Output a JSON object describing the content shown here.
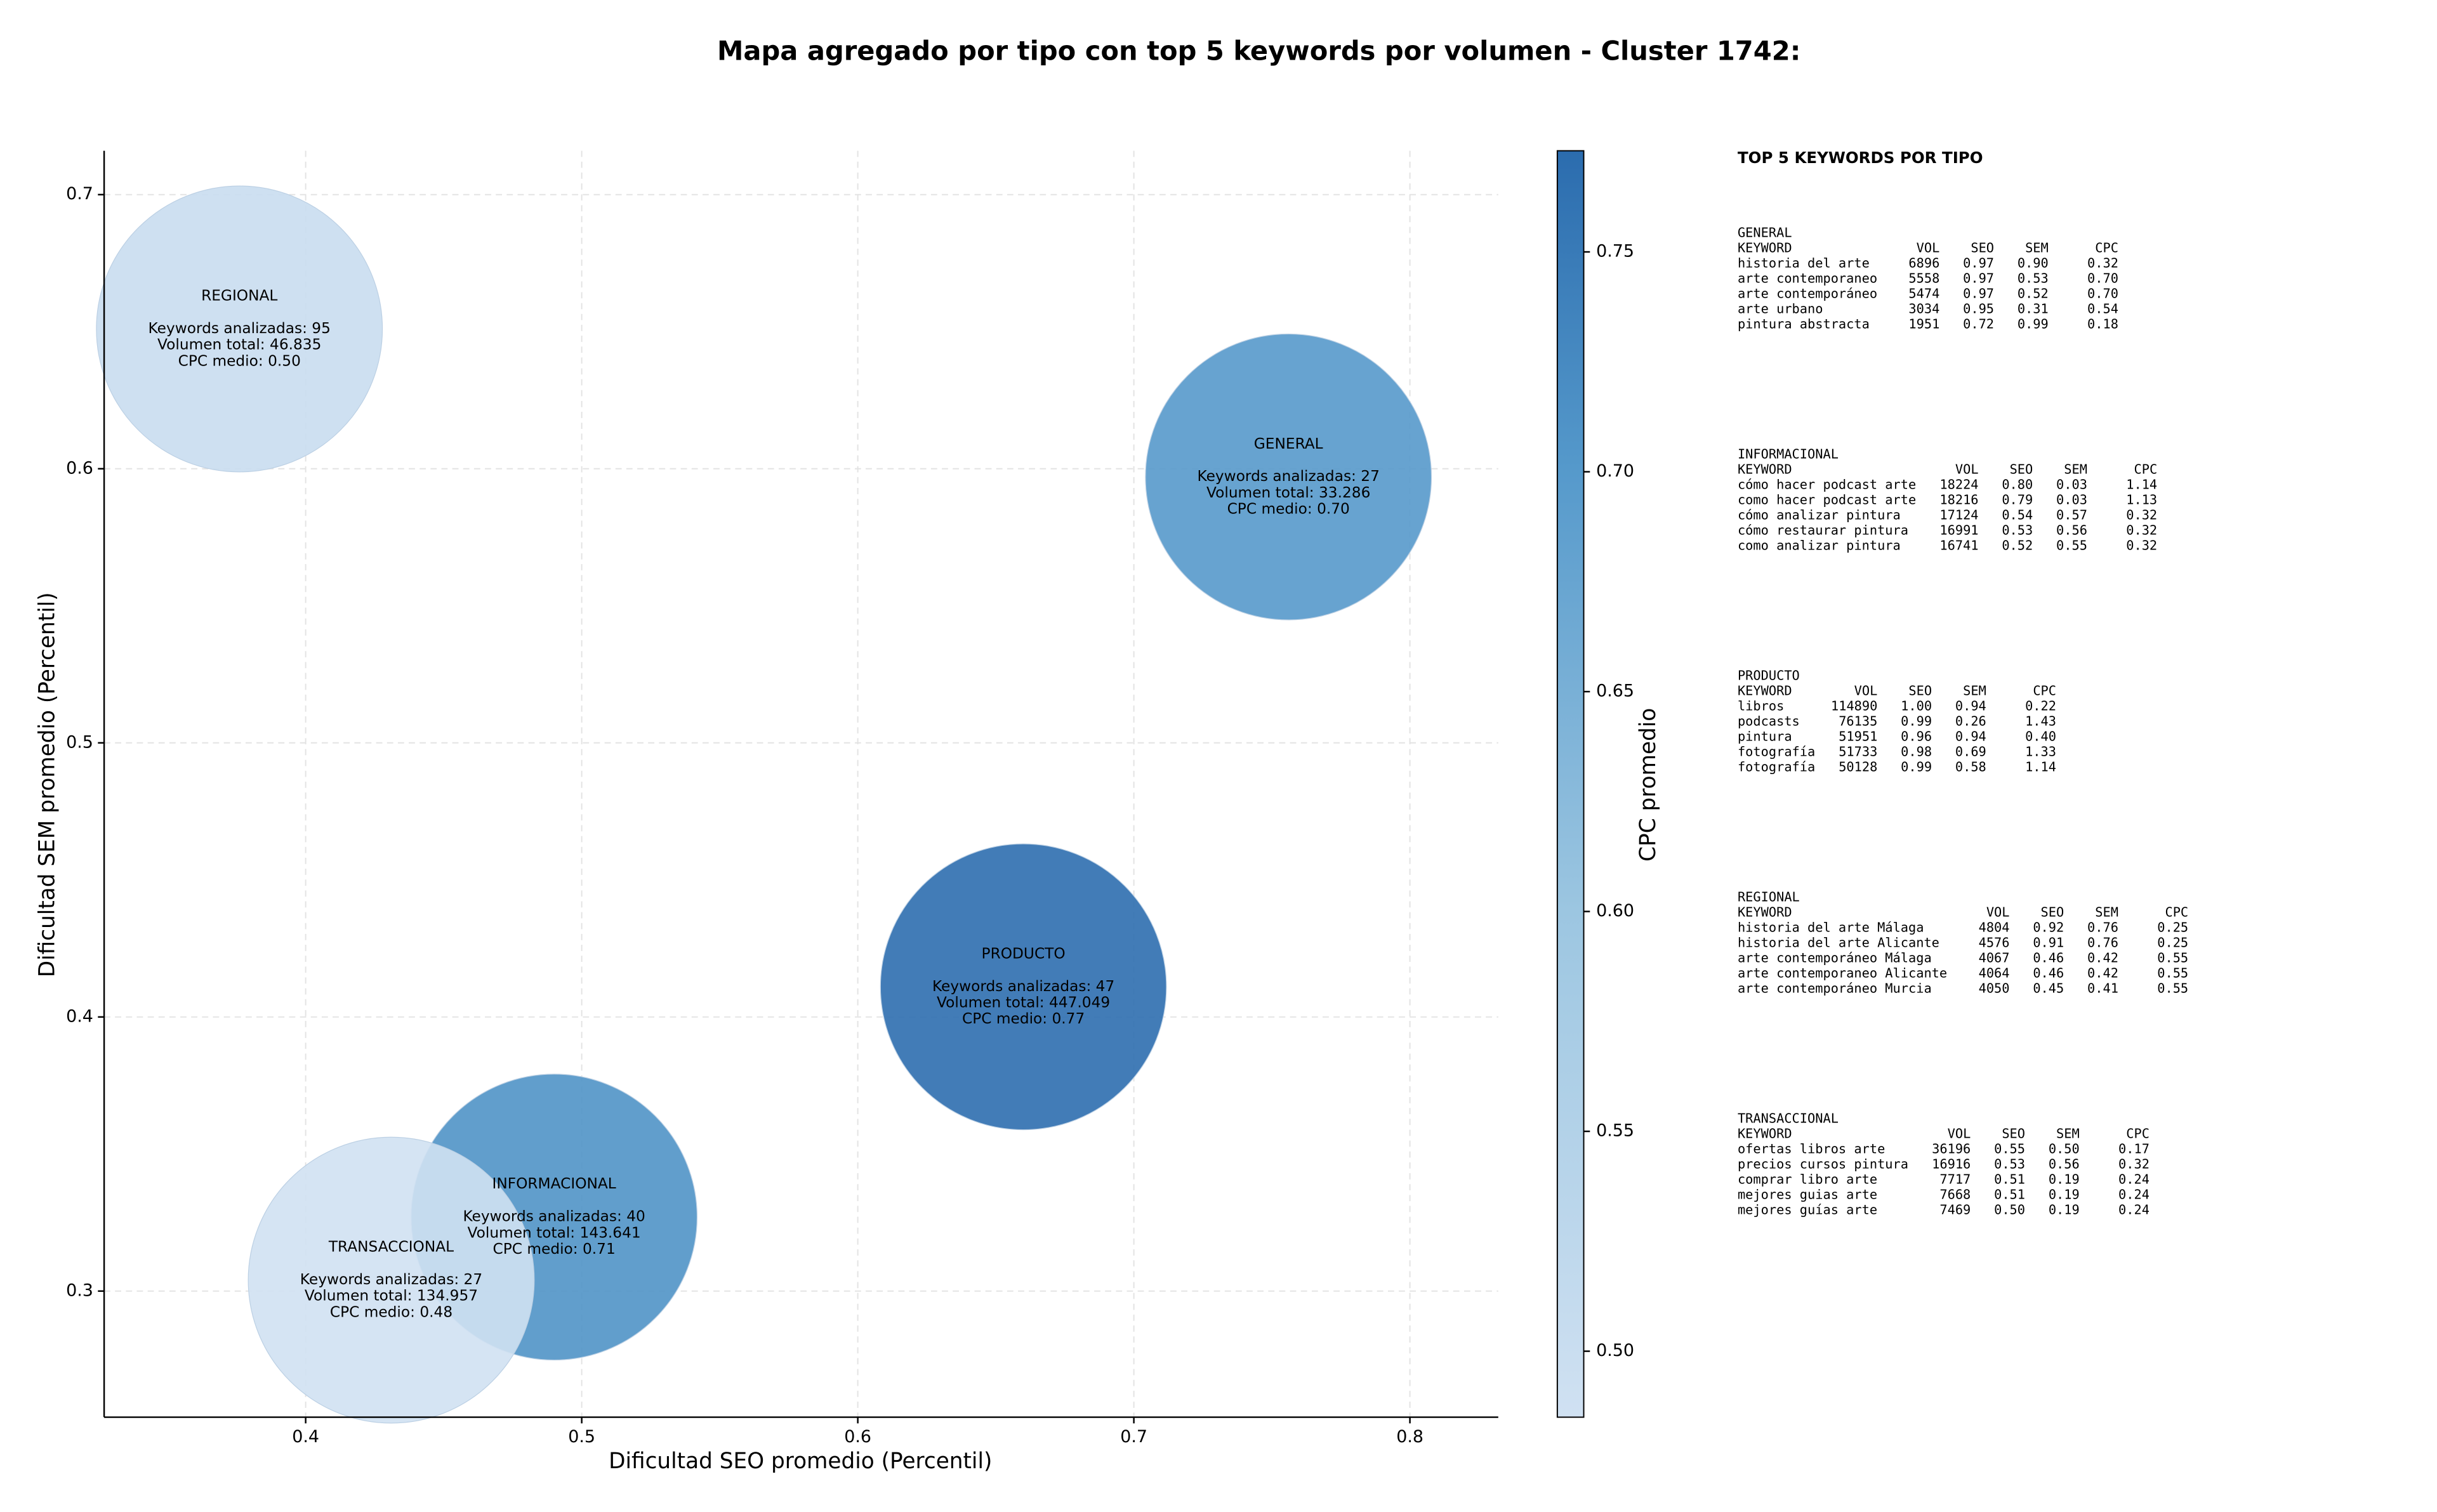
{
  "chart_data": {
    "type": "bubble",
    "title": "Mapa agregado por tipo con top 5 keywords por volumen - Cluster 1742:",
    "xlabel": "Dificultad SEO promedio (Percentil)",
    "ylabel": "Dificultad SEM promedio (Percentil)",
    "xlim": [
      0.327,
      0.832
    ],
    "ylim": [
      0.254,
      0.716
    ],
    "xticks": [
      0.4,
      0.5,
      0.6,
      0.7,
      0.8
    ],
    "yticks": [
      0.3,
      0.4,
      0.5,
      0.6,
      0.7
    ],
    "grid": true,
    "points": [
      {
        "name": "REGIONAL",
        "x": 0.376,
        "y": 0.651,
        "cpc": 0.5,
        "labels": [
          "Keywords analizadas: 95",
          "Volumen total: 46.835",
          "CPC medio: 0.50"
        ]
      },
      {
        "name": "GENERAL",
        "x": 0.756,
        "y": 0.597,
        "cpc": 0.7,
        "labels": [
          "Keywords analizadas: 27",
          "Volumen total: 33.286",
          "CPC medio: 0.70"
        ]
      },
      {
        "name": "PRODUCTO",
        "x": 0.66,
        "y": 0.411,
        "cpc": 0.77,
        "labels": [
          "Keywords analizadas: 47",
          "Volumen total: 447.049",
          "CPC medio: 0.77"
        ]
      },
      {
        "name": "INFORMACIONAL",
        "x": 0.49,
        "y": 0.327,
        "cpc": 0.71,
        "labels": [
          "Keywords analizadas: 40",
          "Volumen total: 143.641",
          "CPC medio: 0.71"
        ]
      },
      {
        "name": "TRANSACCIONAL",
        "x": 0.431,
        "y": 0.304,
        "cpc": 0.48,
        "labels": [
          "Keywords analizadas: 27",
          "Volumen total: 134.957",
          "CPC medio: 0.48"
        ]
      }
    ],
    "colorbar": {
      "label": "CPC promedio",
      "lim": [
        0.485,
        0.773
      ],
      "ticks": [
        {
          "value": 0.5,
          "label": "0.50"
        },
        0.55,
        {
          "value": 0.6,
          "label": "0.60"
        },
        0.65,
        {
          "value": 0.7,
          "label": "0.70"
        },
        0.75
      ]
    }
  },
  "keyword_panel": {
    "title": "TOP 5 KEYWORDS POR TIPO",
    "header": [
      "KEYWORD",
      "VOL",
      "SEO",
      "SEM",
      "CPC"
    ],
    "sections": [
      {
        "name": "GENERAL",
        "rows": [
          [
            "historia del arte",
            "6896",
            "0.97",
            "0.90",
            "0.32"
          ],
          [
            "arte contemporaneo",
            "5558",
            "0.97",
            "0.53",
            "0.70"
          ],
          [
            "arte contemporáneo",
            "5474",
            "0.97",
            "0.52",
            "0.70"
          ],
          [
            "arte urbano",
            "3034",
            "0.95",
            "0.31",
            "0.54"
          ],
          [
            "pintura abstracta",
            "1951",
            "0.72",
            "0.99",
            "0.18"
          ]
        ]
      },
      {
        "name": "INFORMACIONAL",
        "rows": [
          [
            "cómo hacer podcast arte",
            "18224",
            "0.80",
            "0.03",
            "1.14"
          ],
          [
            "como hacer podcast arte",
            "18216",
            "0.79",
            "0.03",
            "1.13"
          ],
          [
            "cómo analizar pintura",
            "17124",
            "0.54",
            "0.57",
            "0.32"
          ],
          [
            "cómo restaurar pintura",
            "16991",
            "0.53",
            "0.56",
            "0.32"
          ],
          [
            "como analizar pintura",
            "16741",
            "0.52",
            "0.55",
            "0.32"
          ]
        ]
      },
      {
        "name": "PRODUCTO",
        "rows": [
          [
            "libros",
            "114890",
            "1.00",
            "0.94",
            "0.22"
          ],
          [
            "podcasts",
            "76135",
            "0.99",
            "0.26",
            "1.43"
          ],
          [
            "pintura",
            "51951",
            "0.96",
            "0.94",
            "0.40"
          ],
          [
            "fotografía",
            "51733",
            "0.98",
            "0.69",
            "1.33"
          ],
          [
            "fotografía",
            "50128",
            "0.99",
            "0.58",
            "1.14"
          ]
        ]
      },
      {
        "name": "REGIONAL",
        "rows": [
          [
            "historia del arte Málaga",
            "4804",
            "0.92",
            "0.76",
            "0.25"
          ],
          [
            "historia del arte Alicante",
            "4576",
            "0.91",
            "0.76",
            "0.25"
          ],
          [
            "arte contemporáneo Málaga",
            "4067",
            "0.46",
            "0.42",
            "0.55"
          ],
          [
            "arte contemporaneo Alicante",
            "4064",
            "0.46",
            "0.42",
            "0.55"
          ],
          [
            "arte contemporáneo Murcia",
            "4050",
            "0.45",
            "0.41",
            "0.55"
          ]
        ]
      },
      {
        "name": "TRANSACCIONAL",
        "rows": [
          [
            "ofertas libros arte",
            "36196",
            "0.55",
            "0.50",
            "0.17"
          ],
          [
            "precios cursos pintura",
            "16916",
            "0.53",
            "0.56",
            "0.32"
          ],
          [
            "comprar libro arte",
            "7717",
            "0.51",
            "0.19",
            "0.24"
          ],
          [
            "mejores guias arte",
            "7668",
            "0.51",
            "0.19",
            "0.24"
          ],
          [
            "mejores guías arte",
            "7469",
            "0.50",
            "0.19",
            "0.24"
          ]
        ]
      }
    ]
  }
}
